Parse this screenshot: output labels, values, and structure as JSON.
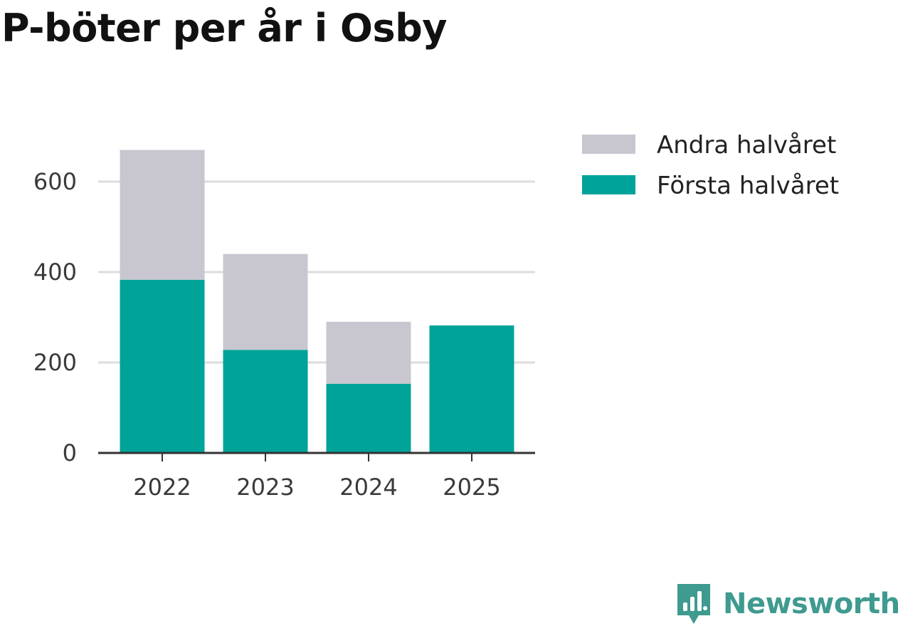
{
  "title": "P-böter per år i Osby",
  "brand": {
    "name": "Newsworthy",
    "color": "#3f9a8f",
    "icon": "newsworthy-logo-icon"
  },
  "colors": {
    "first_half": "#00a398",
    "second_half": "#c8c7d0",
    "grid": "#dddddd",
    "axis": "#333333"
  },
  "chart_data": {
    "type": "bar",
    "stacked": true,
    "title": "P-böter per år i Osby",
    "xlabel": "",
    "ylabel": "",
    "categories": [
      "2022",
      "2023",
      "2024",
      "2025"
    ],
    "series": [
      {
        "name": "Första halvåret",
        "color": "#00a398",
        "values": [
          383,
          228,
          153,
          282
        ]
      },
      {
        "name": "Andra halvåret",
        "color": "#c8c7d0",
        "values": [
          287,
          212,
          137,
          null
        ]
      }
    ],
    "yticks": [
      0,
      200,
      400,
      600
    ],
    "ytick_labels": [
      "0",
      "200",
      "400",
      "600"
    ],
    "ylim": [
      0,
      700
    ],
    "grid": true,
    "legend": {
      "placement": "top-right",
      "items": [
        {
          "label": "Andra halvåret",
          "color": "#c8c7d0"
        },
        {
          "label": "Första halvåret",
          "color": "#00a398"
        }
      ]
    }
  }
}
